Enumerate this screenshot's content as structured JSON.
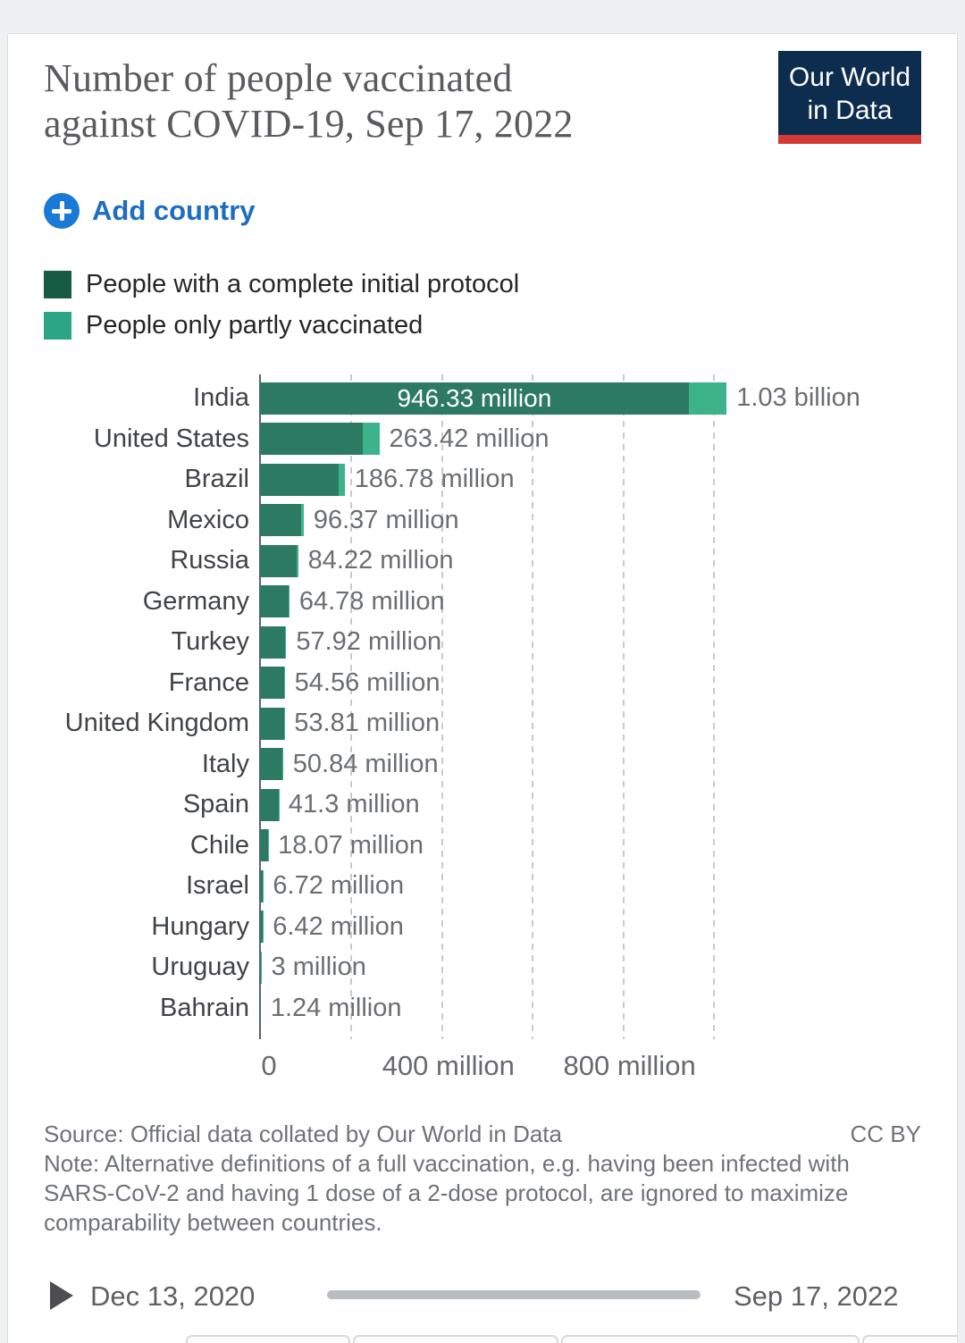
{
  "header": {
    "title_line1": "Number of people vaccinated",
    "title_line2": "against COVID-19, Sep 17, 2022",
    "logo_line1": "Our World",
    "logo_line2": "in Data",
    "logo_bg_color": "#0d2d4e",
    "logo_stripe_color": "#d23a33"
  },
  "toolbar": {
    "add_country_label": "Add country",
    "accent_blue": "#1d6dc1",
    "icon_circle_blue": "#1a78d6"
  },
  "legend": {
    "items": [
      {
        "label": "People with a complete initial protocol",
        "color": "#175b45"
      },
      {
        "label": "People only partly vaccinated",
        "color": "#2aa685"
      }
    ]
  },
  "chart_data": {
    "type": "bar",
    "orientation": "horizontal",
    "stacked": true,
    "title": "Number of people vaccinated against COVID-19, Sep 17, 2022",
    "date": "Sep 17, 2022",
    "unit": "people (millions)",
    "grid": "dashed-vertical",
    "legend_position": "top-left",
    "xlim_millions": [
      0,
      1060
    ],
    "series_names": [
      "People with a complete initial protocol",
      "People only partly vaccinated"
    ],
    "series_colors": {
      "complete": "#2d7a63",
      "partial": "#3cb389"
    },
    "bars": [
      {
        "country": "India",
        "complete_m": 946.33,
        "partial_m": 83.67,
        "total_m": 1030,
        "inside_label": "946.33 million",
        "value_label": "1.03 billion"
      },
      {
        "country": "United States",
        "complete_m": 226,
        "partial_m": 37.42,
        "total_m": 263.42,
        "inside_label": "",
        "value_label": "263.42 million"
      },
      {
        "country": "Brazil",
        "complete_m": 173,
        "partial_m": 13.78,
        "total_m": 186.78,
        "inside_label": "",
        "value_label": "186.78 million"
      },
      {
        "country": "Mexico",
        "complete_m": 90,
        "partial_m": 6.37,
        "total_m": 96.37,
        "inside_label": "",
        "value_label": "96.37 million"
      },
      {
        "country": "Russia",
        "complete_m": 80,
        "partial_m": 4.22,
        "total_m": 84.22,
        "inside_label": "",
        "value_label": "84.22 million"
      },
      {
        "country": "Germany",
        "complete_m": 63,
        "partial_m": 1.78,
        "total_m": 64.78,
        "inside_label": "",
        "value_label": "64.78 million"
      },
      {
        "country": "Turkey",
        "complete_m": 55,
        "partial_m": 2.92,
        "total_m": 57.92,
        "inside_label": "",
        "value_label": "57.92 million"
      },
      {
        "country": "France",
        "complete_m": 53,
        "partial_m": 1.56,
        "total_m": 54.56,
        "inside_label": "",
        "value_label": "54.56 million"
      },
      {
        "country": "United Kingdom",
        "complete_m": 53,
        "partial_m": 0.81,
        "total_m": 53.81,
        "inside_label": "",
        "value_label": "53.81 million"
      },
      {
        "country": "Italy",
        "complete_m": 49.5,
        "partial_m": 1.34,
        "total_m": 50.84,
        "inside_label": "",
        "value_label": "50.84 million"
      },
      {
        "country": "Spain",
        "complete_m": 40.5,
        "partial_m": 0.8,
        "total_m": 41.3,
        "inside_label": "",
        "value_label": "41.3 million"
      },
      {
        "country": "Chile",
        "complete_m": 17.5,
        "partial_m": 0.57,
        "total_m": 18.07,
        "inside_label": "",
        "value_label": "18.07 million"
      },
      {
        "country": "Israel",
        "complete_m": 6.3,
        "partial_m": 0.42,
        "total_m": 6.72,
        "inside_label": "",
        "value_label": "6.72 million"
      },
      {
        "country": "Hungary",
        "complete_m": 6.2,
        "partial_m": 0.22,
        "total_m": 6.42,
        "inside_label": "",
        "value_label": "6.42 million"
      },
      {
        "country": "Uruguay",
        "complete_m": 2.9,
        "partial_m": 0.1,
        "total_m": 3,
        "inside_label": "",
        "value_label": "3 million"
      },
      {
        "country": "Bahrain",
        "complete_m": 1.2,
        "partial_m": 0.04,
        "total_m": 1.24,
        "inside_label": "",
        "value_label": "1.24 million"
      }
    ],
    "x_ticks": [
      {
        "value_m": 0,
        "label": "0"
      },
      {
        "value_m": 400,
        "label": "400 million"
      },
      {
        "value_m": 800,
        "label": "800 million"
      }
    ],
    "gridlines_m": [
      200,
      400,
      600,
      800,
      1000
    ]
  },
  "footer": {
    "source_label": "Source: Official data collated by Our World in Data",
    "license_label": "CC BY",
    "note_label": "Note: Alternative definitions of a full vaccination, e.g. having been infected with SARS-CoV-2 and having 1 dose of a 2-dose protocol, are ignored to maximize comparability between countries."
  },
  "timeline": {
    "start_label": "Dec 13, 2020",
    "end_label": "Sep 17, 2022",
    "handle_color": "#2e79ba"
  }
}
